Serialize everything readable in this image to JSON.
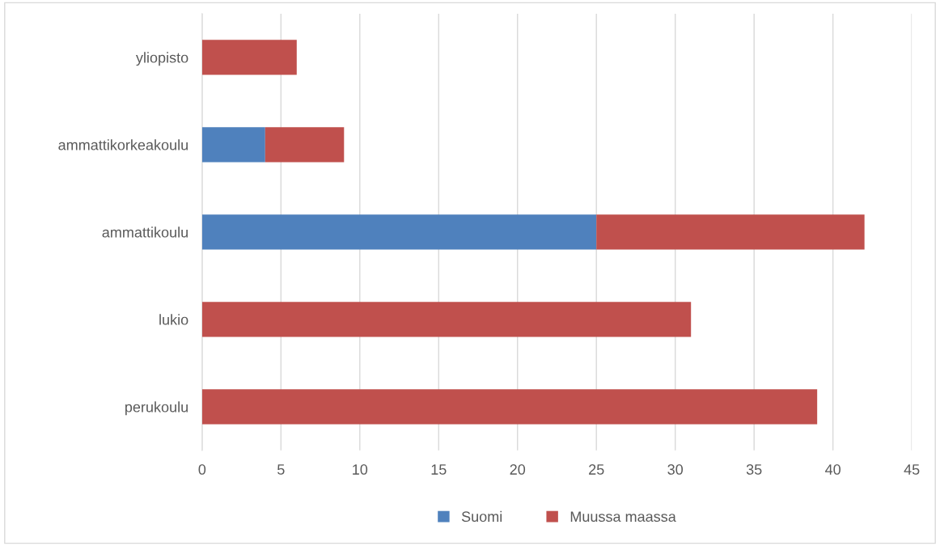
{
  "chart_data": {
    "type": "bar",
    "orientation": "horizontal",
    "stacked": true,
    "categories": [
      "yliopisto",
      "ammattikorkeakoulu",
      "ammattikoulu",
      "lukio",
      "perukoulu"
    ],
    "series": [
      {
        "name": "Suomi",
        "color": "#4f81bd",
        "values": [
          null,
          4,
          25,
          null,
          null
        ]
      },
      {
        "name": "Muussa maassa",
        "color": "#c0504d",
        "values": [
          6,
          5,
          17,
          31,
          39
        ]
      }
    ],
    "xlim": [
      0,
      45
    ],
    "xticks": [
      0,
      5,
      10,
      15,
      20,
      25,
      30,
      35,
      40,
      45
    ],
    "grid": "x",
    "legend": "bottom"
  }
}
